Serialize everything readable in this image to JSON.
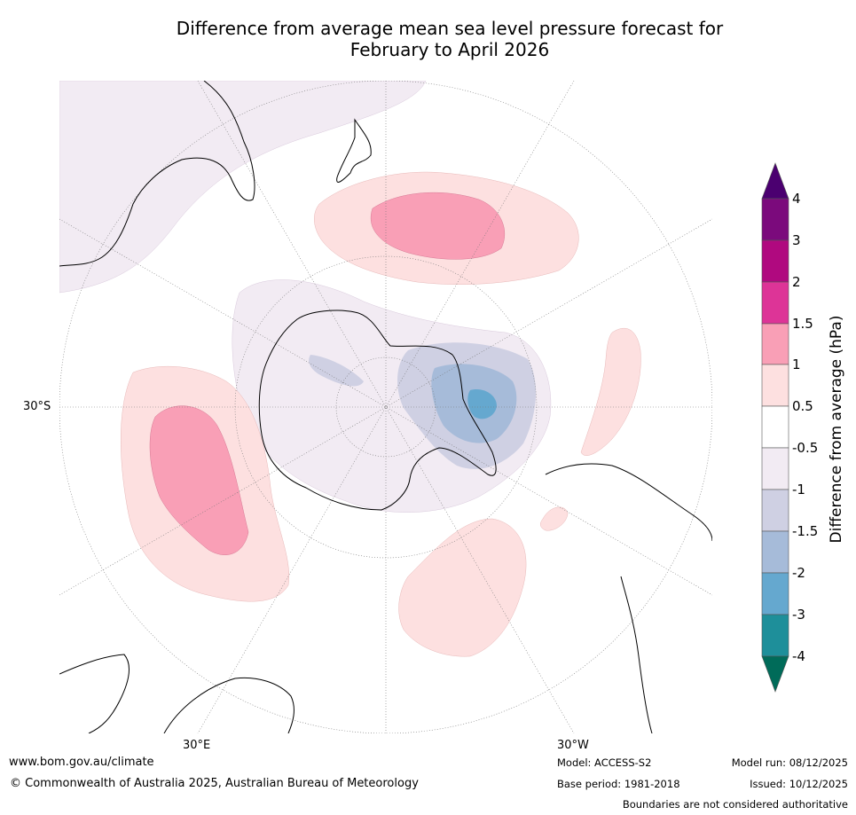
{
  "title": {
    "line1": "Difference from average mean sea level pressure forecast for",
    "line2": "February to April 2026"
  },
  "map": {
    "projection": "south-polar-stereographic",
    "graticule_labels": {
      "lat": "30°S",
      "lon_left": "30°E",
      "lon_right": "30°W"
    },
    "anomaly_regions": [
      {
        "name": "south-pacific-high",
        "category": "0.5 to 1.5"
      },
      {
        "name": "south-indian-high",
        "category": "0.5 to 1.5"
      },
      {
        "name": "south-atlantic-high",
        "category": "0.5 to 1"
      },
      {
        "name": "weddell-sea-low",
        "category": "-1 to -2"
      },
      {
        "name": "antarctic-low",
        "category": "-0.5 to -1"
      }
    ]
  },
  "colorbar": {
    "title": "Difference from average (hPa)",
    "ticks": [
      "4",
      "3",
      "2",
      "1.5",
      "1",
      "0.5",
      "-0.5",
      "-1",
      "-1.5",
      "-2",
      "-3",
      "-4"
    ],
    "colors": {
      "above_4": "#4b0070",
      "3_to_4": "#7b0a7c",
      "2_to_3": "#b0097f",
      "1.5_to_2": "#dd3497",
      "1_to_1.5": "#f99fb6",
      "0.5_to_1": "#fde0e0",
      "-0.5_to_0.5": "#ffffff",
      "-1_to_-0.5": "#f2ebf3",
      "-1.5_to_-1": "#cfd0e3",
      "-2_to_-1.5": "#a6bbd9",
      "-3_to_-2": "#65a8cf",
      "-4_to_-3": "#1e8f9a",
      "below_-4": "#006b59"
    }
  },
  "footer": {
    "url": "www.bom.gov.au/climate",
    "copyright": "© Commonwealth of Australia 2025, Australian Bureau of Meteorology",
    "model": "Model: ACCESS-S2",
    "base_period": "Base period: 1981-2018",
    "model_run": "Model run: 08/12/2025",
    "issued": "Issued: 10/12/2025",
    "disclaimer": "Boundaries are not considered authoritative"
  }
}
